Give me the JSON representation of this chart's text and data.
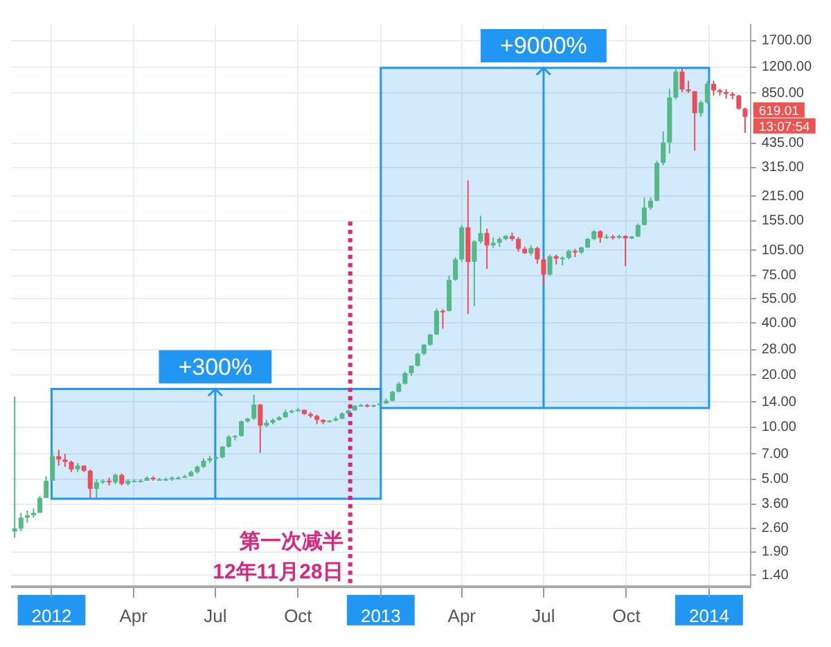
{
  "chart_data": {
    "type": "candlestick",
    "x": [
      "2011-11-21",
      "2011-11-28",
      "2011-12-05",
      "2011-12-12",
      "2011-12-19",
      "2011-12-26",
      "2012-01-02",
      "2012-01-09",
      "2012-01-16",
      "2012-01-23",
      "2012-01-30",
      "2012-02-06",
      "2012-02-13",
      "2012-02-20",
      "2012-02-27",
      "2012-03-05",
      "2012-03-12",
      "2012-03-19",
      "2012-03-26",
      "2012-04-02",
      "2012-04-09",
      "2012-04-16",
      "2012-04-23",
      "2012-04-30",
      "2012-05-07",
      "2012-05-14",
      "2012-05-21",
      "2012-05-28",
      "2012-06-04",
      "2012-06-11",
      "2012-06-18",
      "2012-06-25",
      "2012-07-02",
      "2012-07-09",
      "2012-07-16",
      "2012-07-23",
      "2012-07-30",
      "2012-08-06",
      "2012-08-13",
      "2012-08-20",
      "2012-08-27",
      "2012-09-03",
      "2012-09-10",
      "2012-09-17",
      "2012-09-24",
      "2012-10-01",
      "2012-10-08",
      "2012-10-15",
      "2012-10-22",
      "2012-10-29",
      "2012-11-05",
      "2012-11-12",
      "2012-11-19",
      "2012-11-26",
      "2012-12-03",
      "2012-12-10",
      "2012-12-17",
      "2012-12-24",
      "2012-12-31",
      "2013-01-07",
      "2013-01-14",
      "2013-01-21",
      "2013-01-28",
      "2013-02-04",
      "2013-02-11",
      "2013-02-18",
      "2013-02-25",
      "2013-03-04",
      "2013-03-11",
      "2013-03-18",
      "2013-03-25",
      "2013-04-01",
      "2013-04-08",
      "2013-04-15",
      "2013-04-22",
      "2013-04-29",
      "2013-05-06",
      "2013-05-13",
      "2013-05-20",
      "2013-05-27",
      "2013-06-03",
      "2013-06-10",
      "2013-06-17",
      "2013-06-24",
      "2013-07-01",
      "2013-07-08",
      "2013-07-15",
      "2013-07-22",
      "2013-07-29",
      "2013-08-05",
      "2013-08-12",
      "2013-08-19",
      "2013-08-26",
      "2013-09-02",
      "2013-09-09",
      "2013-09-16",
      "2013-09-23",
      "2013-09-30",
      "2013-10-07",
      "2013-10-14",
      "2013-10-21",
      "2013-10-28",
      "2013-11-04",
      "2013-11-11",
      "2013-11-18",
      "2013-11-25",
      "2013-12-02",
      "2013-12-09",
      "2013-12-16",
      "2013-12-23",
      "2013-12-30",
      "2014-01-06",
      "2014-01-13",
      "2014-01-20",
      "2014-01-27",
      "2014-02-03",
      "2014-02-10"
    ],
    "ohlc": [
      [
        2.5,
        15,
        2.3,
        2.6
      ],
      [
        2.6,
        3.2,
        2.5,
        3.0
      ],
      [
        3.0,
        3.3,
        2.8,
        3.1
      ],
      [
        3.1,
        3.4,
        3.0,
        3.2
      ],
      [
        3.2,
        4.0,
        3.2,
        3.9
      ],
      [
        3.9,
        5.2,
        3.9,
        4.9
      ],
      [
        4.9,
        7.3,
        4.9,
        6.8
      ],
      [
        6.8,
        7.4,
        6.0,
        6.5
      ],
      [
        6.5,
        7.0,
        5.9,
        6.3
      ],
      [
        6.3,
        6.4,
        5.5,
        5.7
      ],
      [
        5.7,
        6.2,
        5.5,
        6.0
      ],
      [
        6.0,
        6.0,
        5.5,
        5.6
      ],
      [
        5.6,
        5.7,
        3.9,
        4.4
      ],
      [
        4.4,
        5.0,
        3.9,
        4.8
      ],
      [
        4.8,
        5.0,
        4.7,
        4.9
      ],
      [
        4.9,
        5.1,
        4.6,
        4.8
      ],
      [
        4.8,
        5.4,
        4.7,
        5.3
      ],
      [
        5.3,
        5.4,
        4.6,
        4.7
      ],
      [
        4.7,
        5.0,
        4.6,
        4.9
      ],
      [
        4.9,
        5.0,
        4.8,
        4.9
      ],
      [
        4.9,
        5.0,
        4.8,
        4.9
      ],
      [
        4.9,
        5.2,
        4.9,
        5.1
      ],
      [
        5.1,
        5.2,
        4.9,
        5.0
      ],
      [
        5.0,
        5.1,
        4.9,
        5.0
      ],
      [
        5.0,
        5.1,
        4.9,
        5.0
      ],
      [
        5.0,
        5.2,
        4.9,
        5.1
      ],
      [
        5.1,
        5.2,
        5.0,
        5.1
      ],
      [
        5.1,
        5.3,
        5.1,
        5.2
      ],
      [
        5.2,
        5.6,
        5.2,
        5.5
      ],
      [
        5.5,
        6.0,
        5.4,
        5.9
      ],
      [
        5.9,
        6.6,
        5.8,
        6.4
      ],
      [
        6.4,
        6.8,
        6.2,
        6.6
      ],
      [
        6.6,
        6.8,
        6.4,
        6.7
      ],
      [
        6.7,
        7.8,
        6.6,
        7.7
      ],
      [
        7.7,
        9.0,
        7.6,
        8.8
      ],
      [
        8.8,
        9.0,
        8.4,
        8.9
      ],
      [
        8.9,
        10.9,
        8.8,
        10.8
      ],
      [
        10.8,
        11.3,
        10.6,
        11.2
      ],
      [
        11.2,
        15.4,
        11.0,
        13.5
      ],
      [
        13.5,
        13.6,
        7.1,
        10.2
      ],
      [
        10.2,
        11.0,
        10.0,
        10.6
      ],
      [
        10.6,
        11.2,
        10.4,
        11.0
      ],
      [
        11.0,
        11.6,
        10.9,
        11.4
      ],
      [
        11.4,
        12.6,
        11.3,
        12.2
      ],
      [
        12.2,
        12.6,
        12.0,
        12.4
      ],
      [
        12.4,
        12.9,
        12.3,
        12.6
      ],
      [
        12.6,
        12.6,
        11.8,
        11.9
      ],
      [
        11.9,
        12.2,
        11.3,
        11.6
      ],
      [
        11.6,
        11.8,
        10.4,
        11.0
      ],
      [
        11.0,
        11.1,
        10.4,
        10.7
      ],
      [
        10.7,
        11.0,
        10.6,
        10.9
      ],
      [
        10.9,
        11.5,
        10.8,
        11.2
      ],
      [
        11.2,
        12.2,
        11.1,
        12.0
      ],
      [
        12.0,
        12.6,
        11.9,
        12.5
      ],
      [
        12.5,
        13.4,
        12.4,
        13.3
      ],
      [
        13.3,
        13.6,
        13.1,
        13.4
      ],
      [
        13.4,
        13.6,
        13.0,
        13.2
      ],
      [
        13.2,
        13.5,
        13.0,
        13.4
      ],
      [
        13.4,
        13.9,
        13.2,
        13.7
      ],
      [
        13.7,
        14.6,
        13.6,
        14.2
      ],
      [
        14.2,
        16.2,
        14.1,
        16.0
      ],
      [
        16.0,
        18.2,
        15.9,
        17.8
      ],
      [
        17.8,
        20.9,
        17.6,
        20.5
      ],
      [
        20.5,
        22.7,
        19.8,
        22.6
      ],
      [
        22.6,
        26.9,
        22.4,
        26.5
      ],
      [
        26.5,
        30.2,
        26.0,
        29.9
      ],
      [
        29.9,
        34.5,
        29.5,
        34.3
      ],
      [
        34.3,
        48.4,
        34.0,
        46.9
      ],
      [
        46.9,
        48.0,
        37.0,
        46.8
      ],
      [
        46.8,
        74.9,
        46.5,
        70.9
      ],
      [
        70.9,
        95.7,
        70.0,
        93.0
      ],
      [
        93.0,
        147.0,
        90.0,
        142.3
      ],
      [
        142.3,
        266.0,
        45.0,
        90.0
      ],
      [
        90.0,
        120.0,
        50.0,
        118.0
      ],
      [
        118.0,
        166.0,
        115.0,
        132.0
      ],
      [
        132.0,
        140.0,
        82.0,
        112.0
      ],
      [
        112.0,
        125.0,
        108.0,
        116.0
      ],
      [
        116.0,
        125.0,
        110.0,
        122.0
      ],
      [
        122.0,
        129.0,
        120.0,
        127.0
      ],
      [
        127.0,
        133.0,
        119.0,
        122.0
      ],
      [
        122.0,
        125.0,
        103.0,
        107.0
      ],
      [
        107.0,
        110.0,
        100.0,
        101.0
      ],
      [
        101.0,
        112.0,
        98.0,
        108.0
      ],
      [
        108.0,
        110.0,
        88.0,
        93.0
      ],
      [
        93.0,
        95.0,
        66.0,
        76.0
      ],
      [
        76.0,
        99.0,
        75.0,
        97.0
      ],
      [
        97.0,
        99.0,
        87.0,
        94.0
      ],
      [
        94.0,
        97.0,
        86.0,
        95.0
      ],
      [
        95.0,
        106.0,
        93.0,
        104.0
      ],
      [
        104.0,
        107.0,
        96.0,
        102.0
      ],
      [
        102.0,
        110.0,
        100.0,
        109.0
      ],
      [
        109.0,
        124.0,
        108.0,
        122.0
      ],
      [
        122.0,
        137.0,
        120.0,
        135.0
      ],
      [
        135.0,
        137.0,
        116.0,
        124.0
      ],
      [
        124.0,
        130.0,
        122.0,
        126.0
      ],
      [
        126.0,
        129.0,
        121.0,
        124.0
      ],
      [
        124.0,
        129.0,
        122.0,
        127.0
      ],
      [
        127.0,
        128.0,
        85.0,
        123.0
      ],
      [
        123.0,
        127.0,
        122.0,
        126.0
      ],
      [
        126.0,
        150.0,
        125.0,
        147.0
      ],
      [
        147.0,
        212.0,
        146.0,
        185.0
      ],
      [
        185.0,
        212.0,
        180.0,
        203.0
      ],
      [
        203.0,
        345.0,
        202.0,
        335.0
      ],
      [
        335.0,
        510.0,
        325.0,
        440.0
      ],
      [
        440.0,
        900.0,
        380.0,
        800.0
      ],
      [
        800.0,
        1186.0,
        780.0,
        1130.0
      ],
      [
        1130.0,
        1186.0,
        860.0,
        890.0
      ],
      [
        890.0,
        1000.0,
        850.0,
        870.0
      ],
      [
        870.0,
        870.0,
        394.0,
        650.0
      ],
      [
        650.0,
        770.0,
        620.0,
        750.0
      ],
      [
        750.0,
        1000.0,
        735.0,
        960.0
      ],
      [
        960.0,
        1000.0,
        820.0,
        880.0
      ],
      [
        880.0,
        900.0,
        820.0,
        860.0
      ],
      [
        860.0,
        890.0,
        790.0,
        840.0
      ],
      [
        840.0,
        860.0,
        780.0,
        820.0
      ],
      [
        820.0,
        830.0,
        680.0,
        690.0
      ],
      [
        690.0,
        700.0,
        500.0,
        619.01
      ]
    ],
    "log": "y",
    "grid": true,
    "xlim": [
      "2011-11-17",
      "2014-02-16"
    ],
    "xticks": [
      {
        "value": "2012-01-01",
        "label": "2012"
      },
      {
        "value": "2012-04-01",
        "label": "Apr"
      },
      {
        "value": "2012-07-01",
        "label": "Jul"
      },
      {
        "value": "2012-10-01",
        "label": "Oct"
      },
      {
        "value": "2013-01-01",
        "label": "2013"
      },
      {
        "value": "2013-04-01",
        "label": "Apr"
      },
      {
        "value": "2013-07-01",
        "label": "Jul"
      },
      {
        "value": "2013-10-01",
        "label": "Oct"
      },
      {
        "value": "2014-01-01",
        "label": "2014"
      }
    ],
    "ylim": [
      1.2,
      2100
    ],
    "yticks": [
      {
        "value": 1.4,
        "label": "1.40"
      },
      {
        "value": 1.9,
        "label": "1.90"
      },
      {
        "value": 2.6,
        "label": "2.60"
      },
      {
        "value": 3.6,
        "label": "3.60"
      },
      {
        "value": 5,
        "label": "5.00"
      },
      {
        "value": 7,
        "label": "7.00"
      },
      {
        "value": 10,
        "label": "10.00"
      },
      {
        "value": 14,
        "label": "14.00"
      },
      {
        "value": 20,
        "label": "20.00"
      },
      {
        "value": 28,
        "label": "28.00"
      },
      {
        "value": 40,
        "label": "40.00"
      },
      {
        "value": 55,
        "label": "55.00"
      },
      {
        "value": 75,
        "label": "75.00"
      },
      {
        "value": 105,
        "label": "105.00"
      },
      {
        "value": 155,
        "label": "155.00"
      },
      {
        "value": 215,
        "label": "215.00"
      },
      {
        "value": 315,
        "label": "315.00"
      },
      {
        "value": 435,
        "label": "435.00"
      },
      {
        "value": 850,
        "label": "850.00"
      },
      {
        "value": 1200,
        "label": "1200.00"
      },
      {
        "value": 1700,
        "label": "1700.00"
      }
    ],
    "bands": [
      {
        "axis": "y",
        "from": 3.86,
        "to": 16.6,
        "color": "#2196f3"
      },
      {
        "axis": "y",
        "from": 12.9,
        "to": 1186,
        "color": "#2196f3"
      }
    ],
    "ref_lines": [
      {
        "axis": "x",
        "value": "2012-11-28",
        "label": "第一次减半\n12年11月28日",
        "color": "#d6287f",
        "line_style": "dotted"
      }
    ],
    "annotations": [
      {
        "text": "+300%",
        "x": "2012-07-01",
        "y": 16.6
      },
      {
        "text": "+9000%",
        "x": "2013-07-01",
        "y": 1186
      },
      "619.01",
      "13:07:54"
    ]
  }
}
